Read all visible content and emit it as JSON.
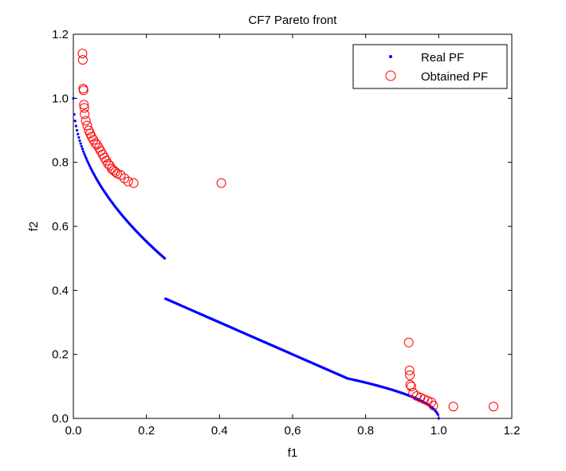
{
  "chart_data": {
    "type": "scatter",
    "title": "CF7 Pareto front",
    "xlabel": "f1",
    "ylabel": "f2",
    "xlim": [
      0,
      1.2
    ],
    "ylim": [
      0,
      1.2
    ],
    "x_ticks": [
      "0.0",
      "0.2",
      "0.4",
      "0,6",
      "0.8",
      "1.0",
      "1.2"
    ],
    "y_ticks": [
      "0.0",
      "0.2",
      "0.4",
      "0.6",
      "0.8",
      "1.0",
      "1.2"
    ],
    "legend_position": "top-right",
    "grid": false,
    "series": [
      {
        "name": "Real PF",
        "marker": "dot",
        "color": "#0000ff",
        "segments": [
          {
            "x_range": [
              0,
              0.25
            ],
            "y": "1 - sqrt(x)"
          },
          {
            "x_range": [
              0.25,
              0.5
            ],
            "y": "0.5*(1 - x)"
          },
          {
            "x_range": [
              0.5,
              0.75
            ],
            "y": "0.25*sqrt(1 - x) linear approx: 0.25 -> 0.125"
          },
          {
            "x_range": [
              0.75,
              1.0
            ],
            "y": "0.25*sqrt(1 - x)"
          }
        ],
        "x": [
          0,
          0.01,
          0.02,
          0.04,
          0.06,
          0.09,
          0.12,
          0.16,
          0.2,
          0.25,
          0.3,
          0.35,
          0.4,
          0.45,
          0.5,
          0.55,
          0.6,
          0.65,
          0.7,
          0.75,
          0.8,
          0.85,
          0.9,
          0.93,
          0.96,
          0.98,
          0.99,
          1.0
        ],
        "y": [
          1.0,
          0.9,
          0.859,
          0.8,
          0.755,
          0.7,
          0.654,
          0.6,
          0.553,
          0.5,
          0.4,
          0.35,
          0.35,
          0.3,
          0.25,
          0.225,
          0.2,
          0.175,
          0.15,
          0.125,
          0.112,
          0.097,
          0.079,
          0.066,
          0.05,
          0.035,
          0.025,
          0.0
        ]
      },
      {
        "name": "Obtained PF",
        "marker": "circle",
        "color": "#ff0000",
        "x": [
          0.025,
          0.026,
          0.027,
          0.028,
          0.029,
          0.03,
          0.031,
          0.034,
          0.038,
          0.042,
          0.046,
          0.05,
          0.055,
          0.06,
          0.065,
          0.07,
          0.075,
          0.08,
          0.085,
          0.09,
          0.095,
          0.1,
          0.105,
          0.11,
          0.115,
          0.12,
          0.13,
          0.14,
          0.15,
          0.165,
          0.405,
          0.918,
          0.92,
          0.921,
          0.922,
          0.925,
          0.93,
          0.94,
          0.95,
          0.96,
          0.97,
          0.98,
          0.985,
          1.04,
          1.15
        ],
        "y": [
          1.14,
          1.12,
          1.03,
          1.025,
          0.98,
          0.97,
          0.95,
          0.93,
          0.915,
          0.9,
          0.89,
          0.88,
          0.87,
          0.86,
          0.855,
          0.845,
          0.835,
          0.825,
          0.815,
          0.805,
          0.795,
          0.79,
          0.78,
          0.775,
          0.77,
          0.765,
          0.76,
          0.75,
          0.74,
          0.735,
          0.735,
          0.237,
          0.15,
          0.135,
          0.105,
          0.1,
          0.08,
          0.07,
          0.065,
          0.06,
          0.055,
          0.05,
          0.04,
          0.037,
          0.037
        ]
      }
    ]
  }
}
